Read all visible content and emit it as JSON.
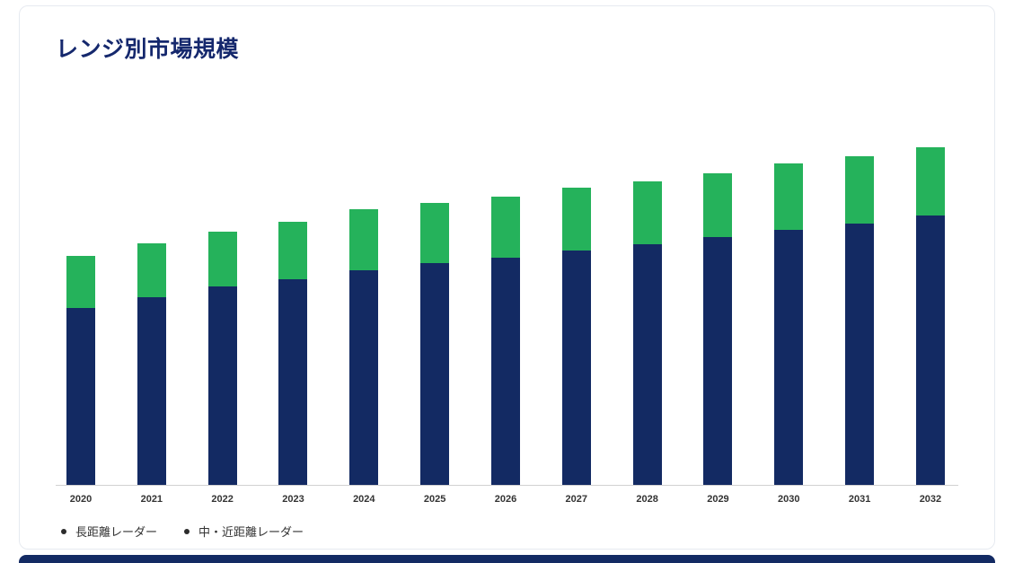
{
  "page": {
    "title": "レンジ別市場規模"
  },
  "legend": [
    {
      "label": "長距離レーダー",
      "color": "#132a63"
    },
    {
      "label": "中・近距離レーダー",
      "color": "#25b25b"
    }
  ],
  "chart_data": {
    "type": "bar",
    "stacked": true,
    "title": "レンジ別市場規模",
    "xlabel": "",
    "ylabel": "",
    "categories": [
      "2020",
      "2021",
      "2022",
      "2023",
      "2024",
      "2025",
      "2026",
      "2027",
      "2028",
      "2029",
      "2030",
      "2031",
      "2032"
    ],
    "series": [
      {
        "name": "長距離レーダー",
        "color": "#132a63",
        "values": [
          197,
          209,
          221,
          229,
          239,
          247,
          253,
          261,
          268,
          276,
          284,
          291,
          300
        ]
      },
      {
        "name": "中・近距離レーダー",
        "color": "#25b25b",
        "values": [
          58,
          60,
          61,
          64,
          68,
          67,
          68,
          70,
          70,
          71,
          74,
          75,
          76
        ]
      }
    ],
    "ylim": [
      0,
      400
    ],
    "grid": false,
    "y_axis_labels_visible": false,
    "legend_position": "bottom-left",
    "note": "values estimated in relative units; no y-axis scale shown"
  }
}
